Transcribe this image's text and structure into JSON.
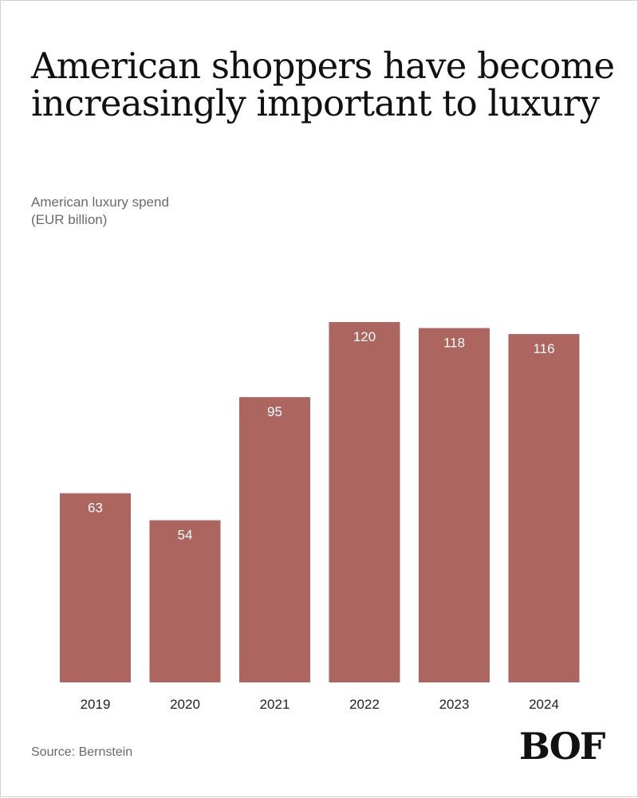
{
  "title": "American shoppers have become increasingly important to luxury",
  "subtitle_lines": [
    "American luxury spend",
    "(EUR billion)"
  ],
  "source": "Source: Bernstein",
  "logo_text": "BOF",
  "colors": {
    "bar": "#ad6560",
    "bar_label": "#ffffff",
    "axis_label": "#222222",
    "text_muted": "#6a6a6a"
  },
  "chart_data": {
    "type": "bar",
    "categories": [
      "2019",
      "2020",
      "2021",
      "2022",
      "2023",
      "2024"
    ],
    "values": [
      63,
      54,
      95,
      120,
      118,
      116
    ],
    "title": "American shoppers have become increasingly important to luxury",
    "ylabel": "American luxury spend (EUR billion)",
    "ylim": [
      0,
      120
    ],
    "grid": false,
    "legend": "none",
    "data_labels": true
  }
}
